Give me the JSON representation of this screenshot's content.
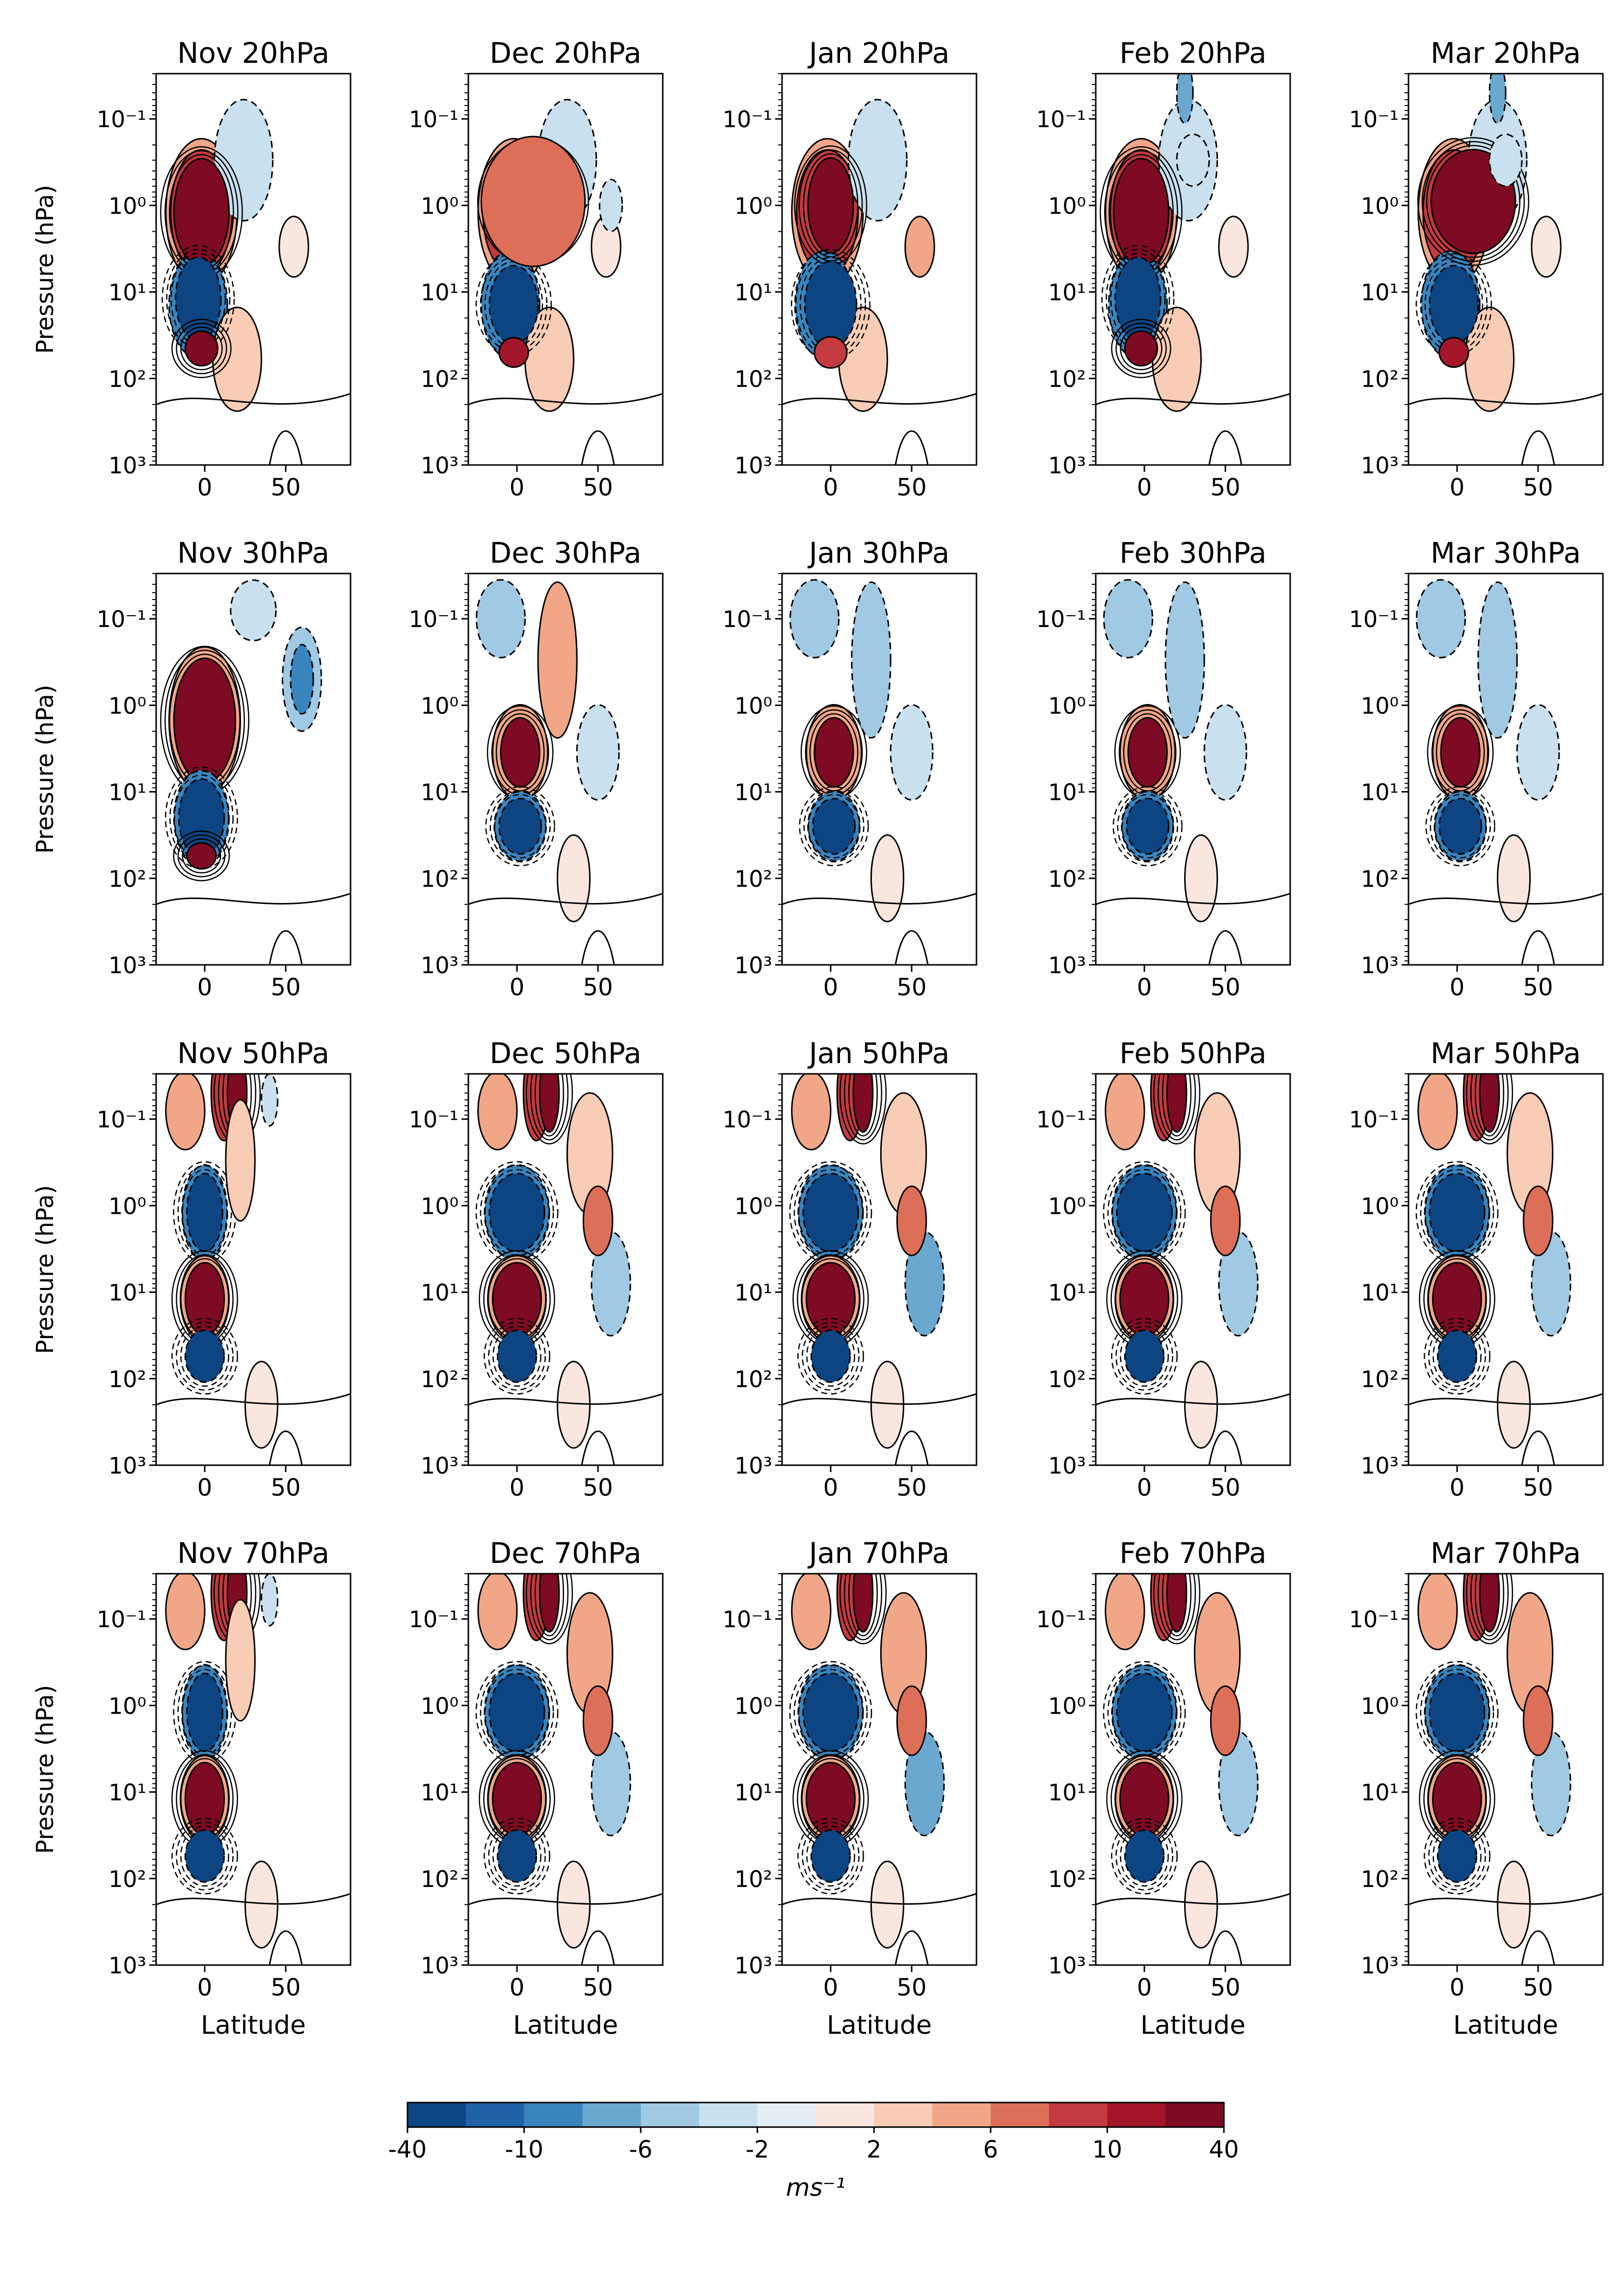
{
  "chart_data": {
    "type": "contour",
    "layout": {
      "rows": 4,
      "cols": 5
    },
    "panels": [
      {
        "title": "Nov 20hPa"
      },
      {
        "title": "Dec 20hPa"
      },
      {
        "title": "Jan 20hPa"
      },
      {
        "title": "Feb 20hPa"
      },
      {
        "title": "Mar 20hPa"
      },
      {
        "title": "Nov 30hPa"
      },
      {
        "title": "Dec 30hPa"
      },
      {
        "title": "Jan 30hPa"
      },
      {
        "title": "Feb 30hPa"
      },
      {
        "title": "Mar 30hPa"
      },
      {
        "title": "Nov 50hPa"
      },
      {
        "title": "Dec 50hPa"
      },
      {
        "title": "Jan 50hPa"
      },
      {
        "title": "Feb 50hPa"
      },
      {
        "title": "Mar 50hPa"
      },
      {
        "title": "Nov 70hPa"
      },
      {
        "title": "Dec 70hPa"
      },
      {
        "title": "Jan 70hPa"
      },
      {
        "title": "Feb 70hPa"
      },
      {
        "title": "Mar 70hPa"
      }
    ],
    "xlabel": "Latitude",
    "ylabel": "Pressure (hPa)",
    "xlim": [
      -30,
      90
    ],
    "ylim": [
      1000,
      0.03
    ],
    "yscale": "log",
    "xticks": [
      0,
      50
    ],
    "xtick_labels": [
      "0",
      "50"
    ],
    "yticks": [
      0.1,
      1,
      10,
      100,
      1000
    ],
    "ytick_labels": [
      "10⁻¹",
      "10⁰",
      "10¹",
      "10²",
      "10³"
    ],
    "colorbar": {
      "label": "ms⁻¹",
      "tick_labels": [
        "-40",
        "-10",
        "-6",
        "-2",
        "2",
        "6",
        "10",
        "40"
      ],
      "colors": [
        "#0d4582",
        "#1f62a8",
        "#3a84bd",
        "#6aa8d0",
        "#a0c9e3",
        "#c9e0ee",
        "#e6eff5",
        "#f9e7df",
        "#f8ccb5",
        "#f1a787",
        "#dd6f59",
        "#c33a3f",
        "#a3162a",
        "#7f0a23"
      ]
    }
  }
}
